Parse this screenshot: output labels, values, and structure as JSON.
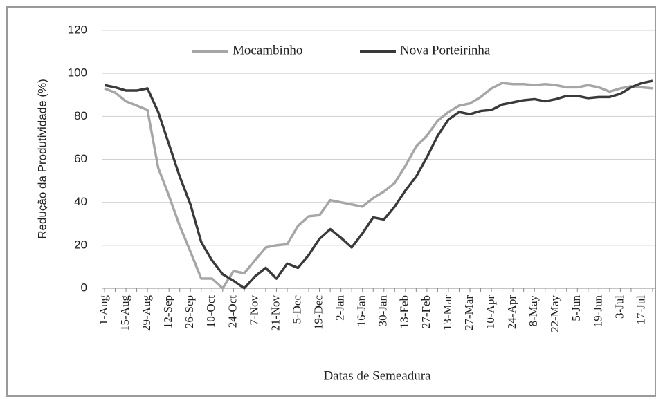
{
  "chart_data": {
    "type": "line",
    "x_label": "Datas de Semeadura",
    "y_label": "Redução da Produtividade (%)",
    "categories": [
      "1-Aug",
      null,
      "15-Aug",
      null,
      "29-Aug",
      null,
      "12-Sep",
      null,
      "26-Sep",
      null,
      "10-Oct",
      null,
      "24-Oct",
      null,
      "7-Nov",
      null,
      "21-Nov",
      null,
      "5-Dec",
      null,
      "19-Dec",
      null,
      "2-Jan",
      null,
      "16-Jan",
      null,
      "30-Jan",
      null,
      "13-Feb",
      null,
      "27-Feb",
      null,
      "13-Mar",
      null,
      "27-Mar",
      null,
      "10-Apr",
      null,
      "24-Apr",
      null,
      "8-May",
      null,
      "22-May",
      null,
      "5-Jun",
      null,
      "19-Jun",
      null,
      "3-Jul",
      null,
      "17-Jul",
      null
    ],
    "series": [
      {
        "name": "Mocambinho",
        "color": "#a6a6a6",
        "values": [
          93,
          91,
          87,
          85,
          83,
          56,
          43,
          29,
          17,
          4.5,
          4.5,
          0,
          8,
          7,
          13,
          19,
          20,
          20.5,
          29,
          33.5,
          34,
          41,
          40,
          39,
          38,
          42,
          45,
          49,
          57,
          66,
          71,
          78,
          82,
          85,
          86,
          89,
          93,
          95.5,
          95,
          95,
          94.5,
          95,
          94.5,
          93.5,
          93.5,
          94.5,
          93.5,
          91.5,
          93,
          94,
          93.5,
          93
        ]
      },
      {
        "name": "Nova Porteirinha",
        "color": "#3a3a3a",
        "values": [
          94.5,
          93.5,
          92,
          92,
          93,
          82,
          67,
          52,
          39,
          21.5,
          13,
          6.5,
          3.5,
          0,
          5.5,
          9.5,
          4.5,
          11.5,
          9.5,
          15.5,
          23,
          27.5,
          23.5,
          19,
          25.5,
          33,
          32,
          38,
          45.5,
          52,
          61,
          71,
          78.5,
          82,
          81,
          82.5,
          83,
          85.5,
          86.5,
          87.5,
          88,
          87,
          88,
          89.5,
          89.5,
          88.5,
          89,
          89,
          90.5,
          93.5,
          95.5,
          96.5
        ]
      }
    ],
    "ylim": [
      0,
      120
    ],
    "yticks": [
      0,
      20,
      40,
      60,
      80,
      100,
      120
    ],
    "grid": true,
    "legend": "top"
  }
}
